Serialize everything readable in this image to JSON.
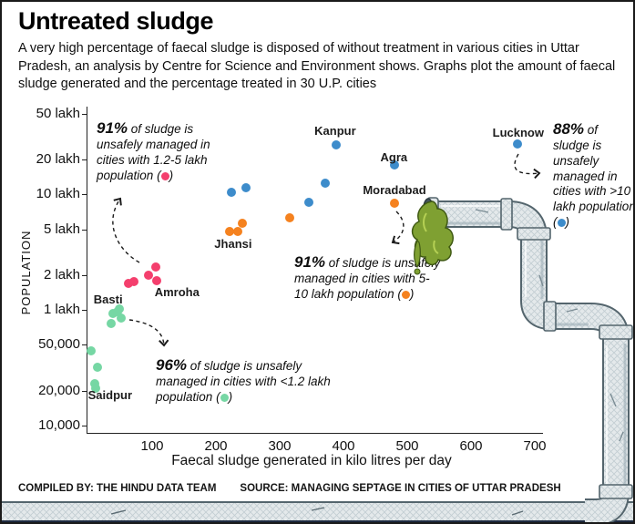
{
  "header": {
    "title": "Untreated sludge",
    "subtitle": "A very high percentage of faecal sludge is disposed of without treatment in various cities in Uttar Pradesh, an analysis by Centre for Science and Environment shows. Graphs plot the amount of faecal sludge generated and the percentage treated in 30 U.P. cities"
  },
  "footer": {
    "compiled_by": "COMPILED BY: THE HINDU DATA TEAM",
    "source": "SOURCE: MANAGING SEPTAGE IN CITIES OF UTTAR PRADESH"
  },
  "chart_data": {
    "type": "scatter",
    "title": "Untreated sludge",
    "xlabel": "Faecal sludge generated in kilo litres per day",
    "ylabel": "POPULATION",
    "x_scale": "linear",
    "y_scale": "log",
    "xlim": [
      0,
      710
    ],
    "ylim": [
      10000,
      5000000
    ],
    "grid": false,
    "x_ticks": [
      100,
      200,
      300,
      400,
      500,
      600,
      700
    ],
    "y_ticks": [
      {
        "label": "50 lakh",
        "value": 5000000
      },
      {
        "label": "20 lakh",
        "value": 2000000
      },
      {
        "label": "10 lakh",
        "value": 1000000
      },
      {
        "label": "5 lakh",
        "value": 500000
      },
      {
        "label": "2 lakh",
        "value": 200000
      },
      {
        "label": "1 lakh",
        "value": 100000
      },
      {
        "label": "50,000",
        "value": 50000
      },
      {
        "label": "20,000",
        "value": 20000
      },
      {
        "label": "10,000",
        "value": 10000
      }
    ],
    "series": [
      {
        "name": "Cities with >10 lakh population",
        "unsafely_managed": "88%",
        "color": "#3d8ccb",
        "points": [
          {
            "sludge_kld": 224,
            "population": 1050000
          },
          {
            "sludge_kld": 247,
            "population": 1150000
          },
          {
            "sludge_kld": 345,
            "population": 850000
          },
          {
            "sludge_kld": 371,
            "population": 1250000
          },
          {
            "sludge_kld": 389,
            "population": 2700000
          },
          {
            "sludge_kld": 480,
            "population": 1800000
          },
          {
            "sludge_kld": 673,
            "population": 2750000
          }
        ]
      },
      {
        "name": "Cities with 5-10 lakh population",
        "unsafely_managed": "91%",
        "color": "#f5821f",
        "points": [
          {
            "sludge_kld": 221,
            "population": 475000
          },
          {
            "sludge_kld": 234,
            "population": 480000
          },
          {
            "sludge_kld": 241,
            "population": 560000
          },
          {
            "sludge_kld": 316,
            "population": 630000
          },
          {
            "sludge_kld": 480,
            "population": 840000
          }
        ]
      },
      {
        "name": "Cities with 1.2-5 lakh population",
        "unsafely_managed": "91%",
        "color": "#f43f6d",
        "points": [
          {
            "sludge_kld": 63,
            "population": 170000
          },
          {
            "sludge_kld": 71,
            "population": 175000
          },
          {
            "sludge_kld": 94,
            "population": 200000
          },
          {
            "sludge_kld": 106,
            "population": 235000
          },
          {
            "sludge_kld": 107,
            "population": 180000
          }
        ]
      },
      {
        "name": "Cities with <1.2 lakh population",
        "unsafely_managed": "96%",
        "color": "#76d7a4",
        "points": [
          {
            "sludge_kld": 49,
            "population": 102000
          },
          {
            "sludge_kld": 46,
            "population": 97000
          },
          {
            "sludge_kld": 38,
            "population": 93000
          },
          {
            "sludge_kld": 52,
            "population": 85000
          },
          {
            "sludge_kld": 36,
            "population": 77000
          },
          {
            "sludge_kld": 4,
            "population": 44000
          },
          {
            "sludge_kld": 14,
            "population": 32000
          },
          {
            "sludge_kld": 10,
            "population": 23000
          },
          {
            "sludge_kld": 11,
            "population": 21000
          }
        ]
      }
    ],
    "city_labels": [
      {
        "name": "Kanpur",
        "x": 387,
        "population": 3450000
      },
      {
        "name": "Agra",
        "x": 479,
        "population": 2040000
      },
      {
        "name": "Lucknow",
        "x": 674,
        "population": 3330000
      },
      {
        "name": "Moradabad",
        "x": 480,
        "population": 1060000
      },
      {
        "name": "Jhansi",
        "x": 227,
        "population": 363000
      },
      {
        "name": "Amroha",
        "x": 139,
        "population": 139000
      },
      {
        "name": "Basti",
        "x": 31,
        "population": 121000
      },
      {
        "name": "Saidpur",
        "x": 34,
        "population": 18000
      }
    ],
    "annotations": [
      {
        "pct": "91%",
        "body": "of sludge is unsafely managed in cities with 1.2-5 lakh population",
        "color": "#f43f6d"
      },
      {
        "pct": "91%",
        "body": "of sludge is unsafely managed in cities with 5-10 lakh population",
        "color": "#f5821f"
      },
      {
        "pct": "96%",
        "body": "of sludge is unsafely managed in cities with <1.2 lakh population",
        "color": "#76d7a4"
      },
      {
        "pct": "88%",
        "body": "of sludge is unsafely managed in cities with >10 lakh population",
        "color": "#3d8ccb"
      }
    ]
  }
}
